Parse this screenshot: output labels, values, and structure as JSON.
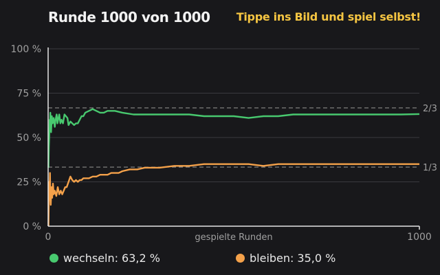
{
  "header": {
    "title": "Runde 1000 von 1000",
    "cta": "Tippe ins Bild und spiel selbst!"
  },
  "colors": {
    "background": "#18181b",
    "switch": "#48c96f",
    "stay": "#f4a14a",
    "grid": "#3a3a3f",
    "reference": "#8a8a8a",
    "axis_text": "#a0a0a0",
    "cta": "#f5c542"
  },
  "chart_data": {
    "type": "line",
    "xlabel": "gespielte Runden",
    "xlim": [
      0,
      1000
    ],
    "x_ticks": [
      "0",
      "1000"
    ],
    "ylim": [
      0,
      100
    ],
    "y_ticks": [
      {
        "value": 0,
        "label": "0 %"
      },
      {
        "value": 25,
        "label": "25 %"
      },
      {
        "value": 50,
        "label": "50 %"
      },
      {
        "value": 75,
        "label": "75 %"
      },
      {
        "value": 100,
        "label": "100 %"
      }
    ],
    "reference_lines": [
      {
        "value": 66.7,
        "label": "2/3"
      },
      {
        "value": 33.3,
        "label": "1/3"
      }
    ],
    "grid": true,
    "series": [
      {
        "name": "wechseln",
        "color": "#48c96f",
        "final_label": "63,2 %",
        "points": [
          [
            1,
            33
          ],
          [
            2,
            45
          ],
          [
            3,
            50
          ],
          [
            4,
            60
          ],
          [
            5,
            55
          ],
          [
            6,
            64
          ],
          [
            7,
            57
          ],
          [
            8,
            53
          ],
          [
            10,
            62
          ],
          [
            12,
            58
          ],
          [
            15,
            61
          ],
          [
            18,
            56
          ],
          [
            20,
            60
          ],
          [
            23,
            63
          ],
          [
            25,
            58
          ],
          [
            28,
            61
          ],
          [
            30,
            63
          ],
          [
            33,
            58
          ],
          [
            36,
            60
          ],
          [
            40,
            58
          ],
          [
            44,
            63
          ],
          [
            48,
            62
          ],
          [
            52,
            61
          ],
          [
            55,
            57
          ],
          [
            60,
            59
          ],
          [
            65,
            58
          ],
          [
            70,
            57
          ],
          [
            75,
            58
          ],
          [
            80,
            58
          ],
          [
            85,
            60
          ],
          [
            90,
            62
          ],
          [
            95,
            62
          ],
          [
            100,
            64
          ],
          [
            110,
            65
          ],
          [
            120,
            66
          ],
          [
            130,
            65
          ],
          [
            140,
            64
          ],
          [
            150,
            64
          ],
          [
            160,
            65
          ],
          [
            180,
            65
          ],
          [
            200,
            64
          ],
          [
            230,
            63
          ],
          [
            260,
            63
          ],
          [
            300,
            63
          ],
          [
            340,
            63
          ],
          [
            380,
            63
          ],
          [
            420,
            62
          ],
          [
            460,
            62
          ],
          [
            500,
            62
          ],
          [
            540,
            61
          ],
          [
            580,
            62
          ],
          [
            620,
            62
          ],
          [
            660,
            63
          ],
          [
            700,
            63
          ],
          [
            750,
            63
          ],
          [
            800,
            63
          ],
          [
            850,
            63
          ],
          [
            900,
            63
          ],
          [
            950,
            63
          ],
          [
            1000,
            63.2
          ]
        ]
      },
      {
        "name": "bleiben",
        "color": "#f4a14a",
        "final_label": "35,0 %",
        "points": [
          [
            1,
            0
          ],
          [
            2,
            15
          ],
          [
            3,
            25
          ],
          [
            4,
            20
          ],
          [
            5,
            30
          ],
          [
            6,
            18
          ],
          [
            7,
            12
          ],
          [
            9,
            22
          ],
          [
            11,
            16
          ],
          [
            13,
            24
          ],
          [
            15,
            18
          ],
          [
            18,
            20
          ],
          [
            22,
            17
          ],
          [
            26,
            22
          ],
          [
            30,
            18
          ],
          [
            34,
            20
          ],
          [
            38,
            18
          ],
          [
            42,
            20
          ],
          [
            46,
            22
          ],
          [
            50,
            22
          ],
          [
            55,
            25
          ],
          [
            60,
            28
          ],
          [
            65,
            26
          ],
          [
            70,
            25
          ],
          [
            75,
            26
          ],
          [
            80,
            25
          ],
          [
            85,
            26
          ],
          [
            90,
            26
          ],
          [
            95,
            27
          ],
          [
            100,
            27
          ],
          [
            110,
            27
          ],
          [
            120,
            28
          ],
          [
            130,
            28
          ],
          [
            140,
            29
          ],
          [
            150,
            29
          ],
          [
            160,
            29
          ],
          [
            170,
            30
          ],
          [
            180,
            30
          ],
          [
            190,
            30
          ],
          [
            200,
            31
          ],
          [
            220,
            32
          ],
          [
            240,
            32
          ],
          [
            260,
            33
          ],
          [
            280,
            33
          ],
          [
            300,
            33
          ],
          [
            340,
            34
          ],
          [
            380,
            34
          ],
          [
            420,
            35
          ],
          [
            460,
            35
          ],
          [
            500,
            35
          ],
          [
            540,
            35
          ],
          [
            580,
            34
          ],
          [
            620,
            35
          ],
          [
            660,
            35
          ],
          [
            700,
            35
          ],
          [
            750,
            35
          ],
          [
            800,
            35
          ],
          [
            850,
            35
          ],
          [
            900,
            35
          ],
          [
            950,
            35
          ],
          [
            1000,
            35
          ]
        ]
      }
    ]
  }
}
